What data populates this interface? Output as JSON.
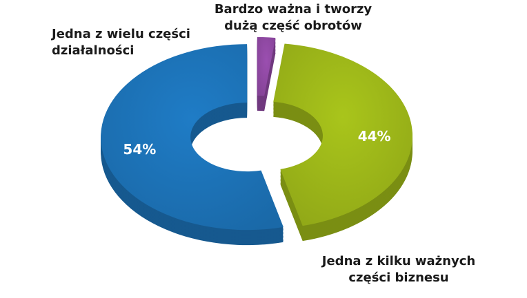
{
  "chart_data": {
    "type": "donut",
    "categories": [
      "Bardzo ważna i tworzy dużą część obrotów",
      "Jedna z kilku ważnych części biznesu",
      "Jedna z wielu części działalności"
    ],
    "values": [
      2,
      44,
      54
    ],
    "value_labels": [
      null,
      "44%",
      "54%"
    ],
    "colors": [
      "#9b4fb0",
      "#a9c51b",
      "#1f7cc6"
    ]
  }
}
